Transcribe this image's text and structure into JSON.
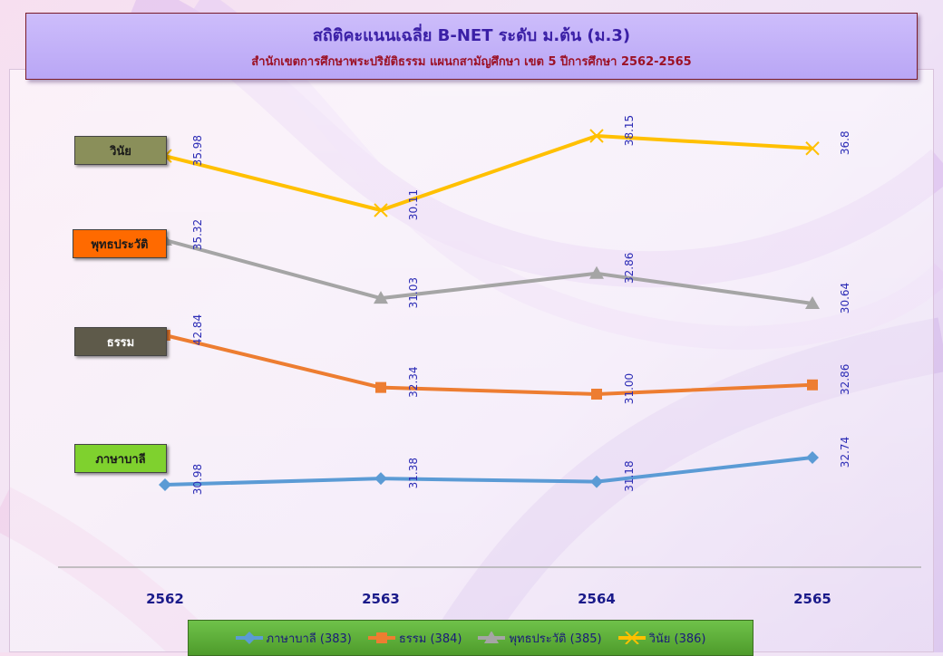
{
  "title": "สถิติคะแนนเฉลี่ย B-NET ระดับ ม.ต้น (ม.3)",
  "subtitle": "สำนักเขตการศึกษาพระปริยัติธรรม แผนกสามัญศึกษา เขต 5  ปีการศึกษา 2562-2565",
  "chart_data": {
    "type": "line",
    "categories": [
      "2562",
      "2563",
      "2564",
      "2565"
    ],
    "series": [
      {
        "name": "วินัย",
        "legend": "วินัย (386)",
        "color": "#ffc000",
        "marker": "x",
        "values": [
          35.98,
          30.11,
          38.15,
          36.8
        ],
        "labels": [
          "35.98",
          "30.11",
          "38.15",
          "36.8"
        ]
      },
      {
        "name": "พุทธประวัติ",
        "legend": "พุทธประวัติ (385)",
        "color": "#a5a5a5",
        "marker": "triangle",
        "values": [
          35.32,
          31.03,
          32.86,
          30.64
        ],
        "labels": [
          "35.32",
          "31.03",
          "32.86",
          "30.64"
        ]
      },
      {
        "name": "ธรรม",
        "legend": "ธรรม (384)",
        "color": "#ed7d31",
        "marker": "square",
        "values": [
          42.84,
          32.34,
          31.0,
          32.86
        ],
        "labels": [
          "42.84",
          "32.34",
          "31.00",
          "32.86"
        ]
      },
      {
        "name": "ภาษาบาลี",
        "legend": "ภาษาบาลี (383)",
        "color": "#5b9bd5",
        "marker": "diamond",
        "values": [
          30.98,
          31.38,
          31.18,
          32.74
        ],
        "labels": [
          "30.98",
          "31.38",
          "31.18",
          "32.74"
        ]
      }
    ],
    "legend_order": [
      3,
      2,
      1,
      0
    ],
    "label_colors": {
      "วินัย": "#8a8f5a",
      "พุทธประวัติ": "#ff6a00",
      "ธรรม": "#5e5a4a",
      "ภาษาบาลี": "#7fd12e"
    },
    "label_text_colors": {
      "วินัย": "#1a1a1a",
      "พุทธประวัติ": "#1a1a1a",
      "ธรรม": "#ffffff",
      "ภาษาบาลี": "#1a1a1a"
    },
    "data_label_color": "#2b2bb5",
    "legend_position": "bottom",
    "grid": false
  }
}
